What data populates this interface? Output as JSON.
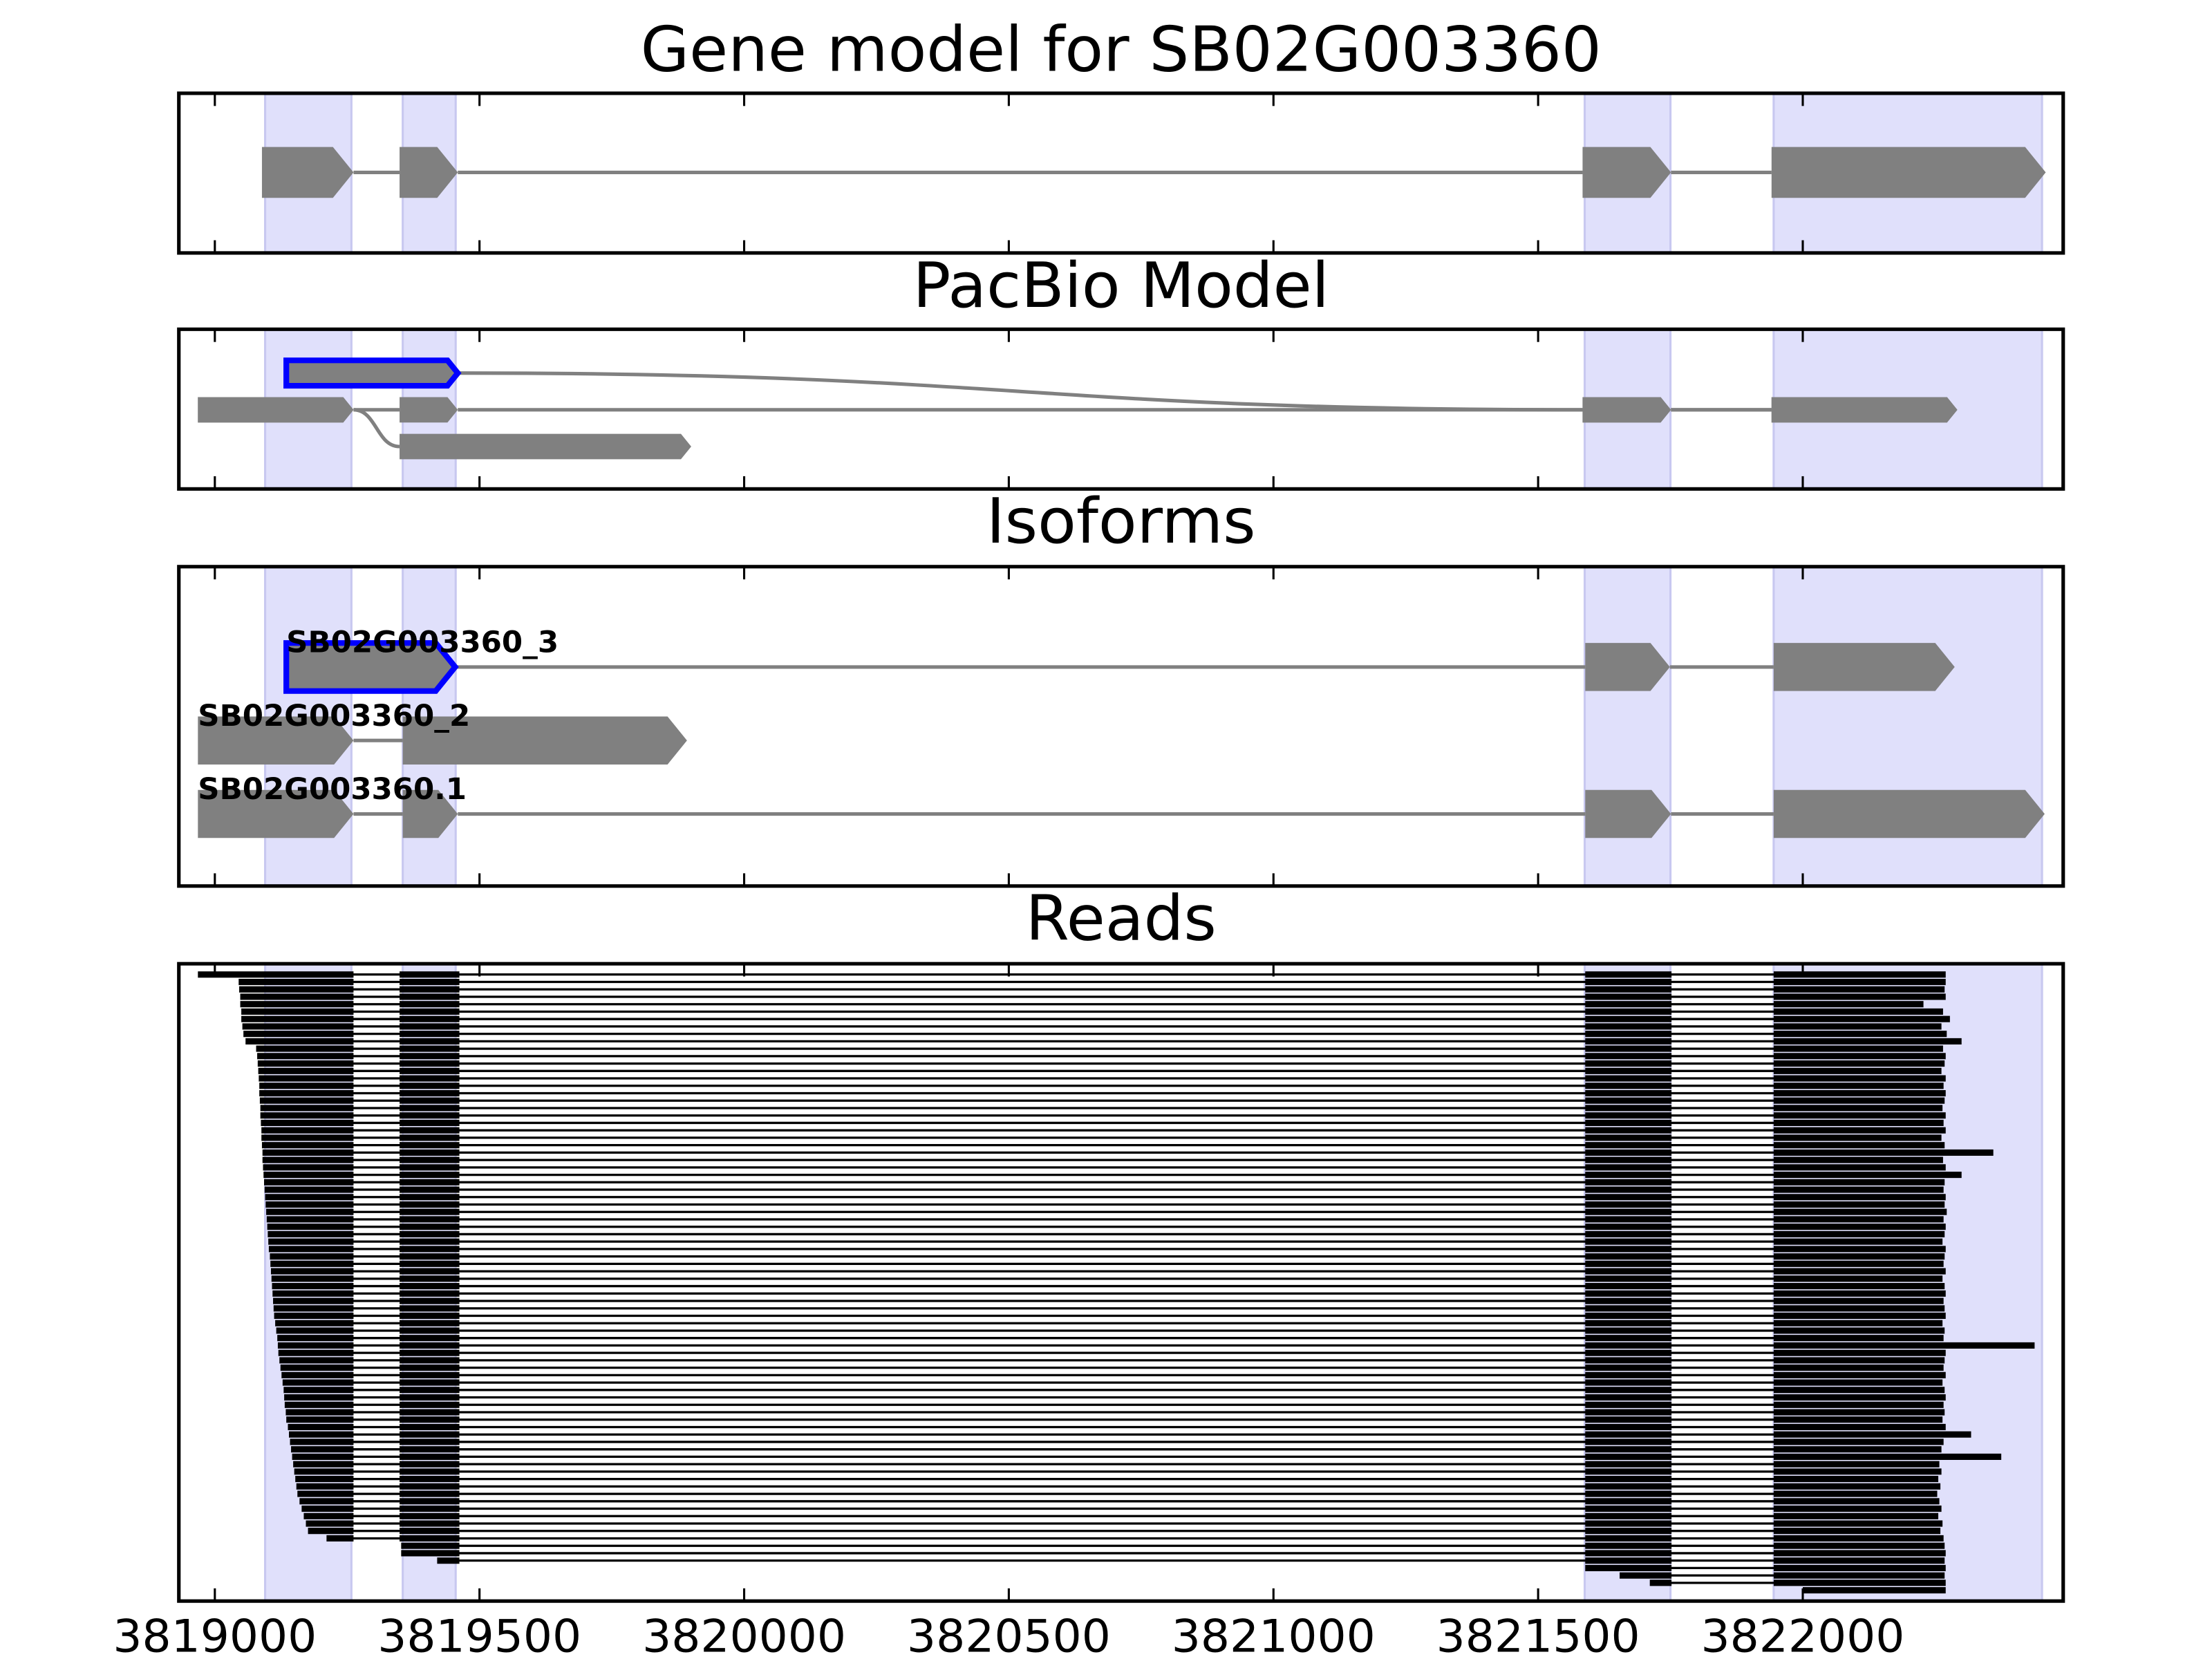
{
  "chart_data": {
    "type": "gene-track",
    "xlim": [
      3818932,
      3822492
    ],
    "xticks": [
      3819000,
      3819500,
      3820000,
      3820500,
      3821000,
      3821500,
      3822000
    ],
    "shaded": [
      [
        3819095,
        3819258
      ],
      [
        3819355,
        3819455
      ],
      [
        3821588,
        3821750
      ],
      [
        3821945,
        3822452
      ]
    ],
    "shade_color": "#e0e0fb",
    "exon_color": "#808080",
    "panels": [
      {
        "title": "Gene model for SB02G003360",
        "transcripts": [
          {
            "exons": [
              {
                "start": 3819089,
                "end": 3819262
              },
              {
                "start": 3819349,
                "end": 3819459
              },
              {
                "start": 3821584,
                "end": 3821751
              },
              {
                "start": 3821941,
                "end": 3822459
              }
            ]
          }
        ]
      },
      {
        "title": "PacBio Model",
        "transcripts": [
          {
            "exons": [
              {
                "start": 3819135,
                "end": 3819459,
                "row": 0,
                "outline": "#0000ff"
              },
              {
                "start": 3821584,
                "end": 3821751,
                "row": 1
              },
              {
                "start": 3821941,
                "end": 3822292,
                "row": 1
              }
            ]
          },
          {
            "exons": [
              {
                "start": 3818968,
                "end": 3819262,
                "row": 1
              },
              {
                "start": 3819349,
                "end": 3819459,
                "row": 1
              },
              {
                "start": 3821584,
                "end": 3821751,
                "row": 1
              },
              {
                "start": 3821941,
                "end": 3822292,
                "row": 1
              }
            ]
          },
          {
            "exons": [
              {
                "start": 3818968,
                "end": 3819262,
                "row": 1
              },
              {
                "start": 3819349,
                "end": 3819900,
                "row": 2
              }
            ]
          }
        ]
      },
      {
        "title": "Isoforms",
        "transcripts": [
          {
            "name": "SB02G003360_3",
            "exons": [
              {
                "start": 3819135,
                "end": 3819454,
                "outline": "#0000ff"
              },
              {
                "start": 3821589,
                "end": 3821749
              },
              {
                "start": 3821945,
                "end": 3822287
              }
            ]
          },
          {
            "name": "SB02G003360_2",
            "exons": [
              {
                "start": 3818968,
                "end": 3819262
              },
              {
                "start": 3819355,
                "end": 3819892
              }
            ]
          },
          {
            "name": "SB02G003360.1",
            "exons": [
              {
                "start": 3818968,
                "end": 3819262
              },
              {
                "start": 3819355,
                "end": 3819459
              },
              {
                "start": 3821589,
                "end": 3821751
              },
              {
                "start": 3821945,
                "end": 3822457
              }
            ]
          }
        ]
      },
      {
        "title": "Reads",
        "reads": {
          "color": "#000000",
          "introns": [
            [
              3819262,
              3819349
            ],
            [
              3819462,
              3821589
            ],
            [
              3821752,
              3821945
            ]
          ],
          "starts": [
            3818968,
            3819045,
            3819046,
            3819048,
            3819048,
            3819050,
            3819050,
            3819052,
            3819054,
            3819058,
            3819078,
            3819080,
            3819081,
            3819082,
            3819083,
            3819084,
            3819084,
            3819085,
            3819086,
            3819086,
            3819087,
            3819088,
            3819088,
            3819089,
            3819090,
            3819090,
            3819091,
            3819092,
            3819093,
            3819094,
            3819095,
            3819096,
            3819097,
            3819098,
            3819099,
            3819100,
            3819101,
            3819102,
            3819104,
            3819105,
            3819106,
            3819107,
            3819108,
            3819109,
            3819110,
            3819111,
            3819112,
            3819114,
            3819116,
            3819118,
            3819119,
            3819120,
            3819122,
            3819124,
            3819126,
            3819128,
            3819130,
            3819131,
            3819132,
            3819134,
            3819135,
            3819138,
            3819140,
            3819142,
            3819144,
            3819146,
            3819148,
            3819150,
            3819152,
            3819154,
            3819156,
            3819160,
            3819164,
            3819168,
            3819172,
            3819176,
            3819211,
            3819352,
            3819352,
            3819420,
            3821589,
            3821654,
            3821711,
            3822000
          ],
          "ends": [
            3822270,
            3822270,
            3822268,
            3822270,
            3822228,
            3822265,
            3822278,
            3822262,
            3822272,
            3822300,
            3822265,
            3822270,
            3822268,
            3822262,
            3822270,
            3822266,
            3822270,
            3822268,
            3822264,
            3822270,
            3822266,
            3822270,
            3822262,
            3822268,
            3822360,
            3822265,
            3822270,
            3822300,
            3822268,
            3822266,
            3822270,
            3822268,
            3822272,
            3822266,
            3822270,
            3822268,
            3822264,
            3822270,
            3822268,
            3822266,
            3822270,
            3822264,
            3822268,
            3822270,
            3822266,
            3822268,
            3822270,
            3822264,
            3822268,
            3822266,
            3822438,
            3822270,
            3822268,
            3822266,
            3822270,
            3822264,
            3822268,
            3822270,
            3822266,
            3822268,
            3822264,
            3822270,
            3822318,
            3822266,
            3822262,
            3822375,
            3822258,
            3822262,
            3822256,
            3822260,
            3822254,
            3822258,
            3822262,
            3822256,
            3822264,
            3822260,
            3822266,
            3822268,
            3822270,
            3822268,
            3822270,
            3822268,
            3822270,
            3822270
          ]
        }
      }
    ]
  }
}
